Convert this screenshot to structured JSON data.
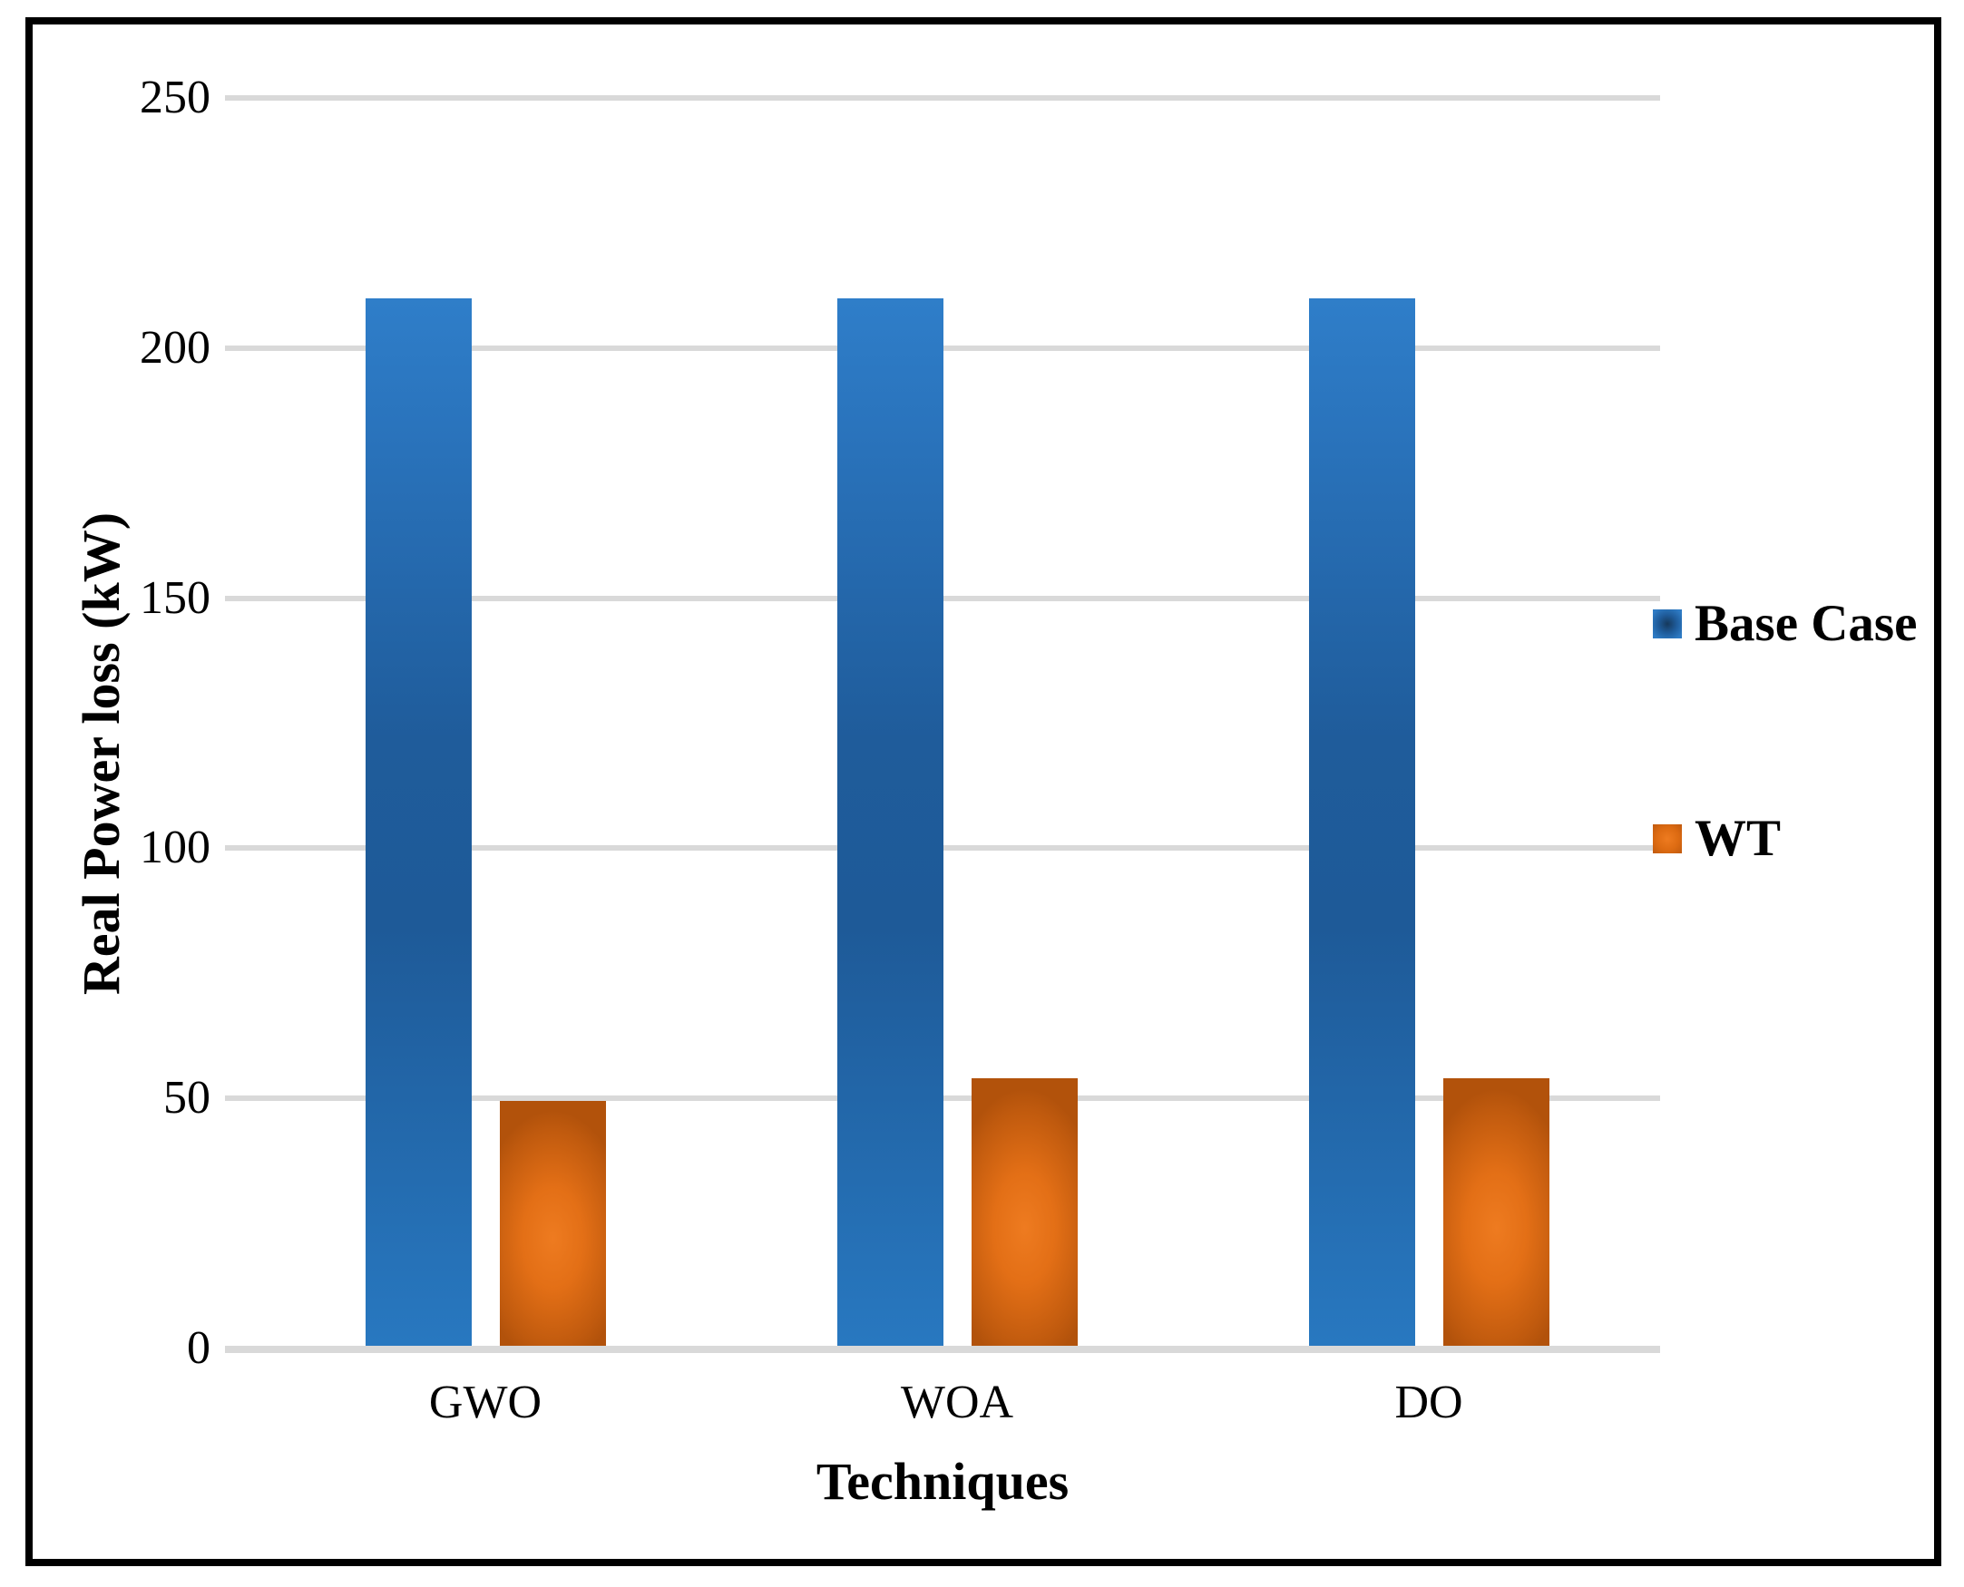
{
  "figure": {
    "background": "#FFFFFF",
    "border_color": "#000000"
  },
  "chart_data": {
    "type": "bar",
    "title": "",
    "categories": [
      "GWO",
      "WOA",
      "DO"
    ],
    "series": [
      {
        "name": "Base Case",
        "values": [
          210,
          210,
          210
        ],
        "color": "#1F5C9B",
        "color_light": "#2E7DC8",
        "color_dark": "#16395C",
        "gradient": "vertical"
      },
      {
        "name": "WT",
        "values": [
          49.5,
          54,
          54
        ],
        "color": "#D2640F",
        "color_light": "#EE7B20",
        "color_dark": "#B2520B",
        "gradient": "radial"
      }
    ],
    "xlabel": "Techniques",
    "ylabel": "Real Power loss (kW)",
    "ylim": [
      0,
      250
    ],
    "ytick_interval": 50,
    "yticks": [
      0,
      50,
      100,
      150,
      200,
      250
    ],
    "grid": true,
    "gridline_color": "#D9D9D9",
    "legend_position": "right",
    "legend": [
      "Base Case",
      "WT"
    ]
  }
}
